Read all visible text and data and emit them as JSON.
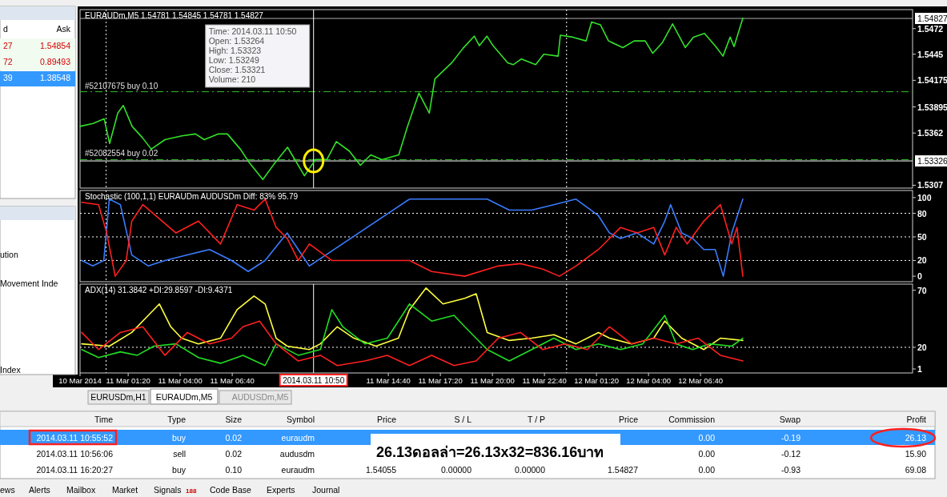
{
  "chart_data": [
    {
      "type": "line",
      "title": "EURAUDm,M5  1.54781 1.54845 1.54781 1.54827",
      "tick_labels": "y",
      "xlim": [
        "2014-03-10T22:52",
        "2014-03-12T17:32"
      ],
      "ylim": [
        1.5304,
        1.5492
      ],
      "yticks": [
        1.5472,
        1.5445,
        1.54175,
        1.53895,
        1.5362,
        1.5307
      ],
      "series": [
        {
          "color": "#33e02a",
          "x": [
            "2014-03-10T22:52",
            "2014-03-10T23:32",
            "2014-03-11T00:06",
            "2014-03-11T00:23",
            "2014-03-11T00:48",
            "2014-03-11T01:05",
            "2014-03-11T01:32",
            "2014-03-11T02:04",
            "2014-03-11T02:31",
            "2014-03-11T03:13",
            "2014-03-11T04:05",
            "2014-03-11T04:47",
            "2014-03-11T05:14",
            "2014-03-11T05:56",
            "2014-03-11T06:25",
            "2014-03-11T07:05",
            "2014-03-11T07:32",
            "2014-03-11T08:14",
            "2014-03-11T08:48",
            "2014-03-11T09:30",
            "2014-03-11T10:22",
            "2014-03-11T10:56",
            "2014-03-11T11:31",
            "2014-03-11T12:00",
            "2014-03-11T12:40",
            "2014-03-11T13:14",
            "2014-03-11T13:46",
            "2014-03-11T14:20",
            "2014-03-11T15:12",
            "2014-03-11T15:39",
            "2014-03-11T16:14",
            "2014-03-11T16:46",
            "2014-03-11T17:03",
            "2014-03-11T17:55",
            "2014-03-11T18:29",
            "2014-03-11T19:04",
            "2014-03-11T19:20",
            "2014-03-11T19:43",
            "2014-03-11T20:02",
            "2014-03-11T20:47",
            "2014-03-11T21:04",
            "2014-03-11T21:29",
            "2014-03-11T22:13",
            "2014-03-11T22:38",
            "2014-03-11T23:22",
            "2014-03-11T23:29",
            "2014-03-12T00:07",
            "2014-03-12T00:48",
            "2014-03-12T01:05",
            "2014-03-12T01:32",
            "2014-03-12T01:57",
            "2014-03-12T02:41",
            "2014-03-12T03:16",
            "2014-03-12T03:50",
            "2014-03-12T04:13",
            "2014-03-12T04:42",
            "2014-03-12T05:14",
            "2014-03-12T05:53",
            "2014-03-12T06:18",
            "2014-03-12T06:52",
            "2014-03-12T07:27",
            "2014-03-12T07:49",
            "2014-03-12T08:11",
            "2014-03-12T08:23",
            "2014-03-12T08:50"
          ],
          "values": [
            1.5369,
            1.5372,
            1.5377,
            1.5351,
            1.5383,
            1.5391,
            1.5369,
            1.5357,
            1.5345,
            1.5355,
            1.5359,
            1.5361,
            1.5355,
            1.5361,
            1.5361,
            1.5345,
            1.5331,
            1.5313,
            1.5329,
            1.5347,
            1.5317,
            1.5334,
            1.5334,
            1.5353,
            1.5343,
            1.5328,
            1.5339,
            1.5334,
            1.5339,
            1.5369,
            1.5404,
            1.5383,
            1.5419,
            1.5436,
            1.5451,
            1.5464,
            1.5454,
            1.5464,
            1.5454,
            1.5436,
            1.5434,
            1.544,
            1.5434,
            1.5445,
            1.5443,
            1.5465,
            1.5463,
            1.5459,
            1.5479,
            1.5476,
            1.5459,
            1.5452,
            1.5459,
            1.5459,
            1.5446,
            1.5457,
            1.5477,
            1.5452,
            1.5463,
            1.5467,
            1.5453,
            1.5443,
            1.5463,
            1.5453,
            1.5483
          ]
        }
      ],
      "ref_lines": [
        {
          "axis": "y",
          "value": 1.54827,
          "label": "1.54827",
          "color": "#b0b0b0",
          "line_style": "solid"
        },
        {
          "axis": "y",
          "value": 1.53326,
          "label": "1.53326",
          "color": "#ffffff",
          "line_style": "solid"
        },
        {
          "axis": "y",
          "value": 1.54055,
          "label": "#52107675 buy 0.10",
          "color": "#33c02a",
          "line_style": "dashed"
        },
        {
          "axis": "y",
          "value": 1.5334,
          "label": "#52082554 buy 0.02",
          "color": "#33c02a",
          "line_style": "dashed"
        },
        {
          "axis": "x",
          "value": "2014-03-11T10:50",
          "label": null,
          "color": "#ffffff",
          "line_style": "solid"
        },
        {
          "axis": "x",
          "value": "2014-03-11T00:12",
          "label": null,
          "color": "#ffffff",
          "line_style": "dotted"
        },
        {
          "axis": "x",
          "value": "2014-03-11T23:48",
          "label": null,
          "color": "#ffffff",
          "line_style": "dotted"
        }
      ],
      "annotations": [
        "Time: 2014.03.11 10:50\nOpen: 1.53264\nHigh: 1.53323\nLow:  1.53249\nClose: 1.53321\nVolume: 210"
      ]
    },
    {
      "type": "line",
      "title": "Stochastic (100,1,1)  EURAUDm  AUDUSDm  Diff: 83%   95.79",
      "tick_labels": "y",
      "xlim": [
        "2014-03-10T22:52",
        "2014-03-12T17:32"
      ],
      "ylim": [
        -7,
        109
      ],
      "yticks": [
        0,
        20,
        50,
        80,
        100
      ],
      "series": [
        {
          "color": "#3a7cff",
          "x": [
            "2014-03-10T22:57",
            "2014-03-10T23:31",
            "2014-03-11T00:05",
            "2014-03-11T00:22",
            "2014-03-11T00:56",
            "2014-03-11T01:31",
            "2014-03-11T02:22",
            "2014-03-11T03:13",
            "2014-03-11T04:22",
            "2014-03-11T05:30",
            "2014-03-11T06:38",
            "2014-03-11T07:29",
            "2014-03-11T08:21",
            "2014-03-11T09:29",
            "2014-03-11T10:03",
            "2014-03-11T10:37",
            "2014-03-11T15:45",
            "2014-03-11T16:53",
            "2014-03-11T18:35",
            "2014-03-11T19:44",
            "2014-03-11T20:52",
            "2014-03-11T22:01",
            "2014-03-11T23:09",
            "2014-03-12T00:17",
            "2014-03-12T01:26",
            "2014-03-12T02:00",
            "2014-03-12T02:34",
            "2014-03-12T03:25",
            "2014-03-12T04:16",
            "2014-03-12T04:50",
            "2014-03-12T05:08",
            "2014-03-12T05:42",
            "2014-03-12T06:16",
            "2014-03-12T06:50",
            "2014-03-12T07:25",
            "2014-03-12T07:50",
            "2014-03-12T08:16",
            "2014-03-12T08:50"
          ],
          "values": [
            20,
            13,
            20,
            98,
            91,
            27,
            13,
            20,
            27,
            34,
            20,
            6,
            20,
            55,
            34,
            13,
            98,
            98,
            98,
            98,
            84,
            84,
            91,
            98,
            77,
            55,
            48,
            55,
            41,
            70,
            91,
            55,
            48,
            34,
            34,
            0,
            55,
            98
          ]
        },
        {
          "color": "#ff2020",
          "x": [
            "2014-03-10T22:57",
            "2014-03-10T23:49",
            "2014-03-11T00:14",
            "2014-03-11T00:40",
            "2014-03-11T01:14",
            "2014-03-11T01:31",
            "2014-03-11T02:05",
            "2014-03-11T02:56",
            "2014-03-11T03:47",
            "2014-03-11T04:56",
            "2014-03-11T06:04",
            "2014-03-11T06:55",
            "2014-03-11T07:47",
            "2014-03-11T08:21",
            "2014-03-11T08:55",
            "2014-03-11T09:29",
            "2014-03-11T10:03",
            "2014-03-11T10:37",
            "2014-03-11T11:46",
            "2014-03-11T15:45",
            "2014-03-11T16:53",
            "2014-03-11T18:35",
            "2014-03-11T20:18",
            "2014-03-11T21:26",
            "2014-03-11T22:35",
            "2014-03-11T23:26",
            "2014-03-12T00:17",
            "2014-03-12T01:26",
            "2014-03-12T02:00",
            "2014-03-12T02:34",
            "2014-03-12T03:25",
            "2014-03-12T04:16",
            "2014-03-12T04:50",
            "2014-03-12T05:25",
            "2014-03-12T05:59",
            "2014-03-12T06:50",
            "2014-03-12T07:41",
            "2014-03-12T08:16",
            "2014-03-12T08:32",
            "2014-03-12T08:50"
          ],
          "values": [
            94,
            91,
            55,
            0,
            20,
            70,
            91,
            73,
            55,
            70,
            41,
            91,
            84,
            98,
            62,
            48,
            20,
            41,
            20,
            20,
            6,
            0,
            13,
            16,
            9,
            0,
            13,
            34,
            48,
            62,
            55,
            62,
            27,
            62,
            41,
            70,
            91,
            41,
            62,
            0
          ]
        }
      ],
      "ref_lines": [
        {
          "axis": "y",
          "value": 20,
          "label": null,
          "color": "#ffffff",
          "line_style": "dotted"
        },
        {
          "axis": "y",
          "value": 50,
          "label": null,
          "color": "#ffffff",
          "line_style": "dotted"
        },
        {
          "axis": "y",
          "value": 80,
          "label": null,
          "color": "#ffffff",
          "line_style": "dotted"
        },
        {
          "axis": "x",
          "value": "2014-03-11T00:12",
          "label": null,
          "color": "#ffffff",
          "line_style": "dotted"
        },
        {
          "axis": "x",
          "value": "2014-03-11T23:48",
          "label": null,
          "color": "#ffffff",
          "line_style": "dotted"
        }
      ]
    },
    {
      "type": "line",
      "title": "ADX(14) 31.3842 +DI:29.8597 -DI:9.4371",
      "xlim": [
        "2014-03-10T22:52",
        "2014-03-12T17:32"
      ],
      "ylim": [
        -2.5,
        75.4
      ],
      "yticks": [
        1,
        20,
        70
      ],
      "xticks": [
        {
          "value": "2014-03-10T22:52",
          "label": "10 Mar 2014"
        },
        {
          "value": "2014-03-11T01:20",
          "label": "11 Mar 01:20"
        },
        {
          "value": "2014-03-11T04:00",
          "label": "11 Mar 04:00"
        },
        {
          "value": "2014-03-11T06:40",
          "label": "11 Mar 06:40"
        },
        {
          "value": "2014-03-11T14:40",
          "label": "11 Mar 14:40"
        },
        {
          "value": "2014-03-11T17:20",
          "label": "11 Mar 17:20"
        },
        {
          "value": "2014-03-11T20:00",
          "label": "11 Mar 20:00"
        },
        {
          "value": "2014-03-11T22:40",
          "label": "11 Mar 22:40"
        },
        {
          "value": "2014-03-12T01:20",
          "label": "12 Mar 01:20"
        },
        {
          "value": "2014-03-12T04:00",
          "label": "12 Mar 04:00"
        },
        {
          "value": "2014-03-12T06:40",
          "label": "12 Mar 06:40"
        }
      ],
      "series": [
        {
          "color": "#ffff40",
          "x": [
            "2014-03-10T22:57",
            "2014-03-11T00:22",
            "2014-03-11T01:31",
            "2014-03-11T02:22",
            "2014-03-11T02:56",
            "2014-03-11T03:31",
            "2014-03-11T04:04",
            "2014-03-11T04:56",
            "2014-03-11T06:04",
            "2014-03-11T06:55",
            "2014-03-11T07:47",
            "2014-03-11T08:21",
            "2014-03-11T08:55",
            "2014-03-11T09:29",
            "2014-03-11T10:37",
            "2014-03-11T11:11",
            "2014-03-11T12:03",
            "2014-03-11T12:54",
            "2014-03-11T14:02",
            "2014-03-11T15:11",
            "2014-03-11T15:45",
            "2014-03-11T16:36",
            "2014-03-11T17:28",
            "2014-03-11T18:35",
            "2014-03-11T19:10",
            "2014-03-11T19:44",
            "2014-03-11T20:52",
            "2014-03-11T22:01",
            "2014-03-11T23:09",
            "2014-03-12T00:17",
            "2014-03-12T01:26",
            "2014-03-12T02:00",
            "2014-03-12T03:08",
            "2014-03-12T04:16",
            "2014-03-12T04:50",
            "2014-03-12T05:42",
            "2014-03-12T06:50",
            "2014-03-12T07:41",
            "2014-03-12T08:50"
          ],
          "values": [
            23,
            21,
            33,
            48,
            58,
            38,
            28,
            23,
            28,
            53,
            65,
            58,
            28,
            21,
            18,
            23,
            38,
            28,
            21,
            28,
            53,
            72,
            58,
            63,
            67,
            33,
            26,
            28,
            31,
            23,
            33,
            28,
            23,
            28,
            43,
            28,
            18,
            28,
            26
          ]
        },
        {
          "color": "#22dd22",
          "x": [
            "2014-03-10T22:57",
            "2014-03-10T23:49",
            "2014-03-11T00:56",
            "2014-03-11T01:48",
            "2014-03-11T02:39",
            "2014-03-11T03:47",
            "2014-03-11T04:56",
            "2014-03-11T06:04",
            "2014-03-11T07:13",
            "2014-03-11T08:21",
            "2014-03-11T08:55",
            "2014-03-11T10:03",
            "2014-03-11T11:11",
            "2014-03-11T11:46",
            "2014-03-11T12:20",
            "2014-03-11T13:28",
            "2014-03-11T14:37",
            "2014-03-11T15:45",
            "2014-03-11T16:53",
            "2014-03-11T18:02",
            "2014-03-11T18:35",
            "2014-03-11T19:44",
            "2014-03-11T20:52",
            "2014-03-11T22:01",
            "2014-03-11T23:09",
            "2014-03-12T00:17",
            "2014-03-12T01:26",
            "2014-03-12T02:34",
            "2014-03-12T03:42",
            "2014-03-12T04:50",
            "2014-03-12T05:25",
            "2014-03-12T06:16",
            "2014-03-12T07:07",
            "2014-03-12T08:16",
            "2014-03-12T08:50"
          ],
          "values": [
            18,
            11,
            16,
            13,
            21,
            23,
            11,
            6,
            13,
            4,
            23,
            13,
            18,
            53,
            38,
            23,
            28,
            58,
            43,
            48,
            38,
            18,
            8,
            18,
            28,
            18,
            23,
            18,
            23,
            48,
            23,
            18,
            23,
            21,
            28
          ]
        },
        {
          "color": "#ff2020",
          "x": [
            "2014-03-10T22:57",
            "2014-03-10T23:49",
            "2014-03-11T00:56",
            "2014-03-11T02:05",
            "2014-03-11T03:13",
            "2014-03-11T04:22",
            "2014-03-11T05:30",
            "2014-03-11T06:38",
            "2014-03-11T07:13",
            "2014-03-11T08:04",
            "2014-03-11T08:55",
            "2014-03-11T10:03",
            "2014-03-11T11:11",
            "2014-03-11T12:03",
            "2014-03-11T13:28",
            "2014-03-11T14:37",
            "2014-03-11T15:45",
            "2014-03-11T16:53",
            "2014-03-11T18:02",
            "2014-03-11T19:10",
            "2014-03-11T20:18",
            "2014-03-11T21:26",
            "2014-03-11T22:35",
            "2014-03-11T23:43",
            "2014-03-12T00:52",
            "2014-03-12T02:00",
            "2014-03-12T03:08",
            "2014-03-12T04:16",
            "2014-03-12T05:25",
            "2014-03-12T06:33",
            "2014-03-12T07:41",
            "2014-03-12T08:50"
          ],
          "values": [
            33,
            18,
            33,
            38,
            13,
            33,
            23,
            28,
            38,
            43,
            23,
            8,
            13,
            4,
            8,
            13,
            4,
            13,
            4,
            8,
            28,
            33,
            18,
            23,
            18,
            38,
            23,
            28,
            23,
            28,
            13,
            8
          ]
        }
      ],
      "ref_lines": [
        {
          "axis": "y",
          "value": 20,
          "label": null,
          "color": "#ffffff",
          "line_style": "dotted"
        },
        {
          "axis": "x",
          "value": "2014-03-11T00:12",
          "label": null,
          "color": "#ffffff",
          "line_style": "dotted"
        },
        {
          "axis": "x",
          "value": "2014-03-11T23:48",
          "label": null,
          "color": "#ffffff",
          "line_style": "dotted"
        },
        {
          "axis": "x",
          "value": "2014-03-11T10:50",
          "label": "2014.03.11 10:50",
          "color": "#ffffff",
          "line_style": "solid"
        }
      ]
    },
    {
      "type": "other",
      "annotations": [
        "d",
        "Ask",
        "27",
        "1.54854",
        "72",
        "0.89493",
        "39",
        "1.38548",
        "ution",
        "Movement Inde",
        "Index",
        "EURUSDm,H1",
        "EURAUDm,M5",
        "AUDUSDm,M5",
        "Time",
        "Type",
        "Size",
        "Symbol",
        "Price",
        "S / L",
        "T / P",
        "Price",
        "Commission",
        "Swap",
        "Profit",
        "2014.03.11 10:55:52",
        "buy",
        "0.02",
        "euraudm",
        "0.00",
        "-0.19",
        "26.13",
        "2014.03.11 10:56:06",
        "sell",
        "0.02",
        "audusdm",
        "0.00",
        "-0.12",
        "15.90",
        "2014.03.11 16:20:27",
        "buy",
        "0.10",
        "euraudm",
        "1.54055",
        "0.00000",
        "0.00000",
        "1.54827",
        "0.00",
        "-0.93",
        "69.08",
        "ews",
        "Alerts",
        "Mailbox",
        "Market",
        "Signals",
        "188",
        "Code Base",
        "Experts",
        "Journal",
        "26.13ดอลล่า=26.13x32=836.16บาท"
      ]
    }
  ]
}
